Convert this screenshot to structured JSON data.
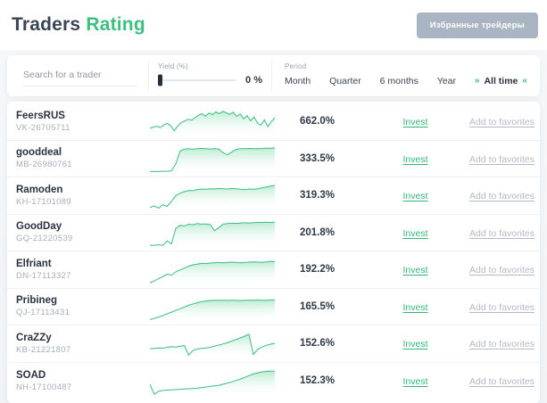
{
  "header": {
    "title_primary": "Traders",
    "title_accent": "Rating",
    "favorites_button": "Избранные трейдеры"
  },
  "filters": {
    "search_placeholder": "Search for a trader",
    "yield_label": "Yield (%)",
    "yield_value": "0 %",
    "yield_slider_percent": 0,
    "period_label": "Period",
    "period_options": [
      "Month",
      "Quarter",
      "6 months",
      "Year",
      "All time"
    ],
    "period_selected": "All time",
    "selected_chevron_left": "»",
    "selected_chevron_right": "«"
  },
  "colors": {
    "accent_green": "#3cc07e",
    "link_green": "#2fb876",
    "dark_text": "#2e3848",
    "muted_text": "#a8aeb9",
    "button_gray": "#a9b5c2",
    "spark_line": "#3cbd7e",
    "spark_fill_top": "#8edfb4"
  },
  "table": {
    "invest_label": "Invest",
    "favorites_label": "Add to favorites",
    "rows": [
      {
        "name": "FeersRUS",
        "id": "VK-26705711",
        "yield": "662.0%",
        "spark": [
          28,
          33,
          36,
          31,
          40,
          46,
          38,
          20,
          36,
          48,
          54,
          60,
          57,
          66,
          74,
          80,
          71,
          82,
          77,
          86,
          80,
          88,
          83,
          77,
          85,
          70,
          79,
          62,
          73,
          55,
          68,
          47,
          40,
          58,
          34,
          52,
          66
        ]
      },
      {
        "name": "gooddeal",
        "id": "MB-26980761",
        "yield": "333.5%",
        "spark": [
          8,
          8,
          8,
          9,
          9,
          10,
          35,
          80,
          87,
          88,
          87,
          88,
          89,
          88,
          87,
          88,
          87,
          74,
          67,
          77,
          86,
          88,
          88,
          89,
          88,
          88,
          89,
          90,
          90,
          91
        ]
      },
      {
        "name": "Ramoden",
        "id": "KH-17101089",
        "yield": "319.3%",
        "spark": [
          10,
          16,
          8,
          20,
          14,
          32,
          52,
          60,
          66,
          70,
          69,
          73,
          75,
          74,
          76,
          75,
          77,
          76,
          75,
          77,
          76,
          74,
          73,
          75,
          74,
          76,
          79,
          82,
          85,
          88
        ]
      },
      {
        "name": "GoodDay",
        "id": "GQ-21220539",
        "yield": "201.8%",
        "spark": [
          9,
          9,
          11,
          9,
          24,
          14,
          68,
          79,
          77,
          83,
          81,
          85,
          83,
          84,
          82,
          60,
          71,
          83,
          85,
          87,
          86,
          87,
          88,
          87,
          88,
          89,
          89,
          90,
          89,
          90
        ]
      },
      {
        "name": "Elfriant",
        "id": "DN-17113327",
        "yield": "192.2%",
        "spark": [
          6,
          12,
          20,
          28,
          36,
          33,
          44,
          51,
          57,
          64,
          69,
          71,
          74,
          73,
          75,
          76,
          77,
          76,
          77,
          78,
          77,
          76,
          77,
          78,
          79,
          78,
          77,
          79,
          81,
          80
        ]
      },
      {
        "name": "Pribineg",
        "id": "QJ-17113431",
        "yield": "165.5%",
        "spark": [
          8,
          12,
          17,
          22,
          28,
          34,
          40,
          46,
          52,
          58,
          63,
          67,
          71,
          73,
          75,
          76,
          76,
          76,
          75,
          76,
          76,
          75,
          76,
          76,
          76,
          77,
          76,
          76,
          77,
          77
        ]
      },
      {
        "name": "CraZZy",
        "id": "KB-21221807",
        "yield": "152.6%",
        "spark": [
          34,
          35,
          37,
          36,
          39,
          41,
          40,
          43,
          45,
          12,
          28,
          33,
          35,
          37,
          39,
          43,
          47,
          51,
          55,
          61,
          66,
          72,
          78,
          85,
          14,
          32,
          40,
          46,
          50,
          53
        ]
      },
      {
        "name": "SOAD",
        "id": "NH-17100487",
        "yield": "152.3%",
        "spark": [
          40,
          6,
          16,
          19,
          20,
          21,
          22,
          23,
          24,
          25,
          26,
          27,
          29,
          31,
          33,
          35,
          37,
          41,
          45,
          49,
          54,
          59,
          65,
          71,
          77,
          81,
          84,
          86,
          87,
          87
        ]
      }
    ]
  }
}
